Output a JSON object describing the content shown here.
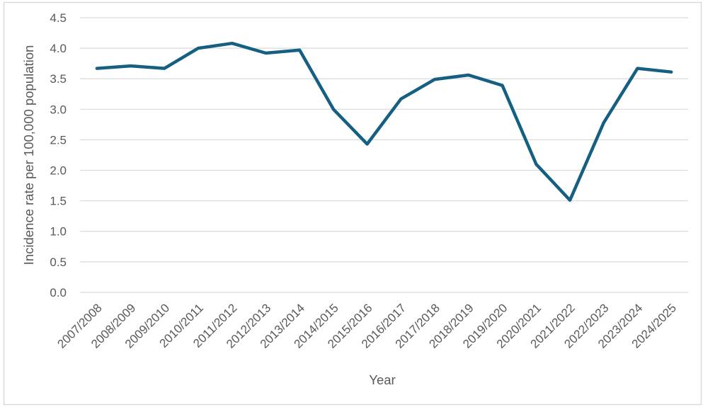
{
  "chart_data": {
    "type": "line",
    "title": "",
    "xlabel": "Year",
    "ylabel": "Incidence rate per 100,000 population",
    "categories": [
      "2007/2008",
      "2008/2009",
      "2009/2010",
      "2010/2011",
      "2011/2012",
      "2012/2013",
      "2013/2014",
      "2014/2015",
      "2015/2016",
      "2016/2017",
      "2017/2018",
      "2018/2019",
      "2019/2020",
      "2020/2021",
      "2021/2022",
      "2022/2023",
      "2023/2024",
      "2024/2025"
    ],
    "values": [
      3.67,
      3.71,
      3.67,
      4.0,
      4.08,
      3.92,
      3.97,
      3.0,
      2.43,
      3.17,
      3.49,
      3.56,
      3.39,
      2.1,
      1.51,
      2.78,
      3.67,
      3.61
    ],
    "ylim": [
      0.0,
      4.5
    ],
    "ytick_step": 0.5,
    "ytick_labels": [
      "0.0",
      "0.5",
      "1.0",
      "1.5",
      "2.0",
      "2.5",
      "3.0",
      "3.5",
      "4.0",
      "4.5"
    ],
    "grid": true,
    "legend": false,
    "colors": {
      "line": "#156082",
      "grid": "#D9D9D9",
      "border": "#D9D9D9",
      "axis_text": "#595959",
      "background": "#FFFFFF"
    }
  }
}
